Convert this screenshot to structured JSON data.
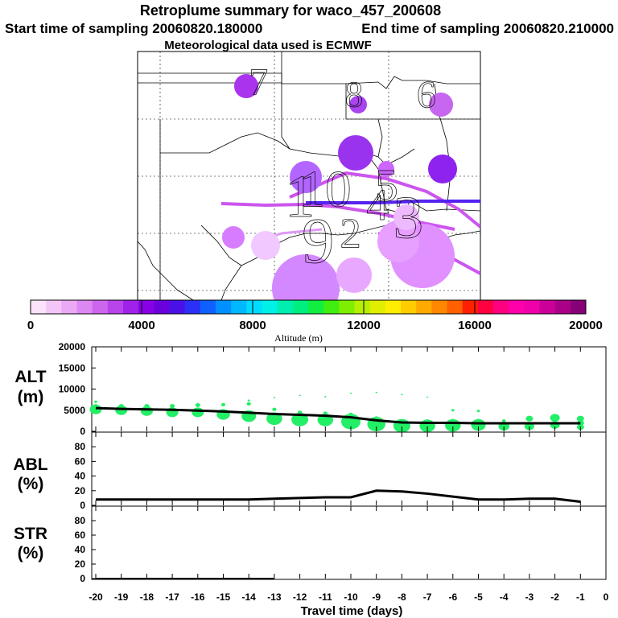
{
  "header": {
    "title": "Retroplume summary for waco_457_200608",
    "start_label": "Start time of sampling 20060820.180000",
    "end_label": "End time of sampling 20060820.210000",
    "met_label": "Meteorological data used is ECMWF"
  },
  "colors": {
    "alt_marker": "#22ee66",
    "line": "#000000",
    "plume_track": "#cc55ee",
    "plume_track_main": "#6622ee"
  },
  "chart_data": [
    {
      "type": "map",
      "name": "retroplume-map",
      "lon_range": [
        -107,
        -88
      ],
      "lat_range": [
        25,
        39
      ],
      "plume_clusters": [
        {
          "label": "1",
          "lon": -98.0,
          "lat": 30.9,
          "size": 0.9,
          "color": "#b366ff"
        },
        {
          "label": "2",
          "lon": -95.2,
          "lat": 28.8,
          "size": 0.45,
          "color": "#e8a8ff"
        },
        {
          "label": "3",
          "lon": -92.0,
          "lat": 29.7,
          "size": 0.9,
          "color": "#e090ff"
        },
        {
          "label": "4",
          "lon": -93.7,
          "lat": 30.4,
          "size": 0.5,
          "color": "#cc66ff"
        },
        {
          "label": "5",
          "lon": -93.2,
          "lat": 31.5,
          "size": 0.55,
          "color": "#d98cff"
        },
        {
          "label": "6",
          "lon": -91.0,
          "lat": 36.6,
          "size": 0.35,
          "color": "#c766ee"
        },
        {
          "label": "7",
          "lon": -100.3,
          "lat": 37.3,
          "size": 0.35,
          "color": "#aa33ee"
        },
        {
          "label": "8",
          "lon": -95.0,
          "lat": 36.6,
          "size": 0.3,
          "color": "#aa44ee"
        },
        {
          "label": "9",
          "lon": -97.0,
          "lat": 28.4,
          "size": 1.0,
          "color": "#d488ff"
        },
        {
          "label": "10",
          "lon": -96.6,
          "lat": 31.3,
          "size": 0.7,
          "color": "#9a33ee"
        }
      ]
    },
    {
      "type": "colorbar",
      "name": "altitude-colorbar",
      "label": "Altitude (m)",
      "range": [
        0,
        20000
      ],
      "tick_labels": [
        "0",
        "4000",
        "8000",
        "12000",
        "16000",
        "20000"
      ],
      "colors": [
        "#fbe3fb",
        "#f4c6f8",
        "#eaa8f5",
        "#dd88f2",
        "#cc66ee",
        "#b844ec",
        "#a022ea",
        "#8800e6",
        "#6a00dd",
        "#4a10e8",
        "#2a30f5",
        "#1060ff",
        "#0090ff",
        "#00b8ff",
        "#00dcff",
        "#00f0e8",
        "#00eeb0",
        "#00ee80",
        "#10ee40",
        "#40ee10",
        "#80ee00",
        "#b8ee00",
        "#e0ee00",
        "#ffee00",
        "#ffcc00",
        "#ffaa00",
        "#ff8800",
        "#ff6000",
        "#ff2000",
        "#ff0040",
        "#ff0080",
        "#ff00aa",
        "#ee00aa",
        "#cc0099",
        "#aa0088",
        "#880077"
      ]
    },
    {
      "type": "scatter+line",
      "name": "alt-panel",
      "panel_label": [
        "ALT",
        "(m)"
      ],
      "ylim": [
        0,
        20000
      ],
      "y_ticks": [
        "20000",
        "15000",
        "10000",
        "5000",
        "0"
      ],
      "mean_line_x": [
        -20,
        -19,
        -18,
        -17,
        -16,
        -15,
        -14,
        -13,
        -12,
        -11,
        -10,
        -9,
        -8,
        -7,
        -6,
        -5,
        -4,
        -3,
        -2,
        -1
      ],
      "mean_line_y": [
        5500,
        5300,
        5200,
        5100,
        4900,
        4700,
        4400,
        4100,
        3900,
        3700,
        3300,
        2600,
        2100,
        2000,
        2000,
        1900,
        1900,
        1900,
        1900,
        1900
      ],
      "clusters": [
        {
          "x": -20,
          "alts": [
            5200,
            6000,
            7000
          ],
          "sizes": [
            1.0,
            0.4,
            0.25
          ]
        },
        {
          "x": -19,
          "alts": [
            5000,
            6000
          ],
          "sizes": [
            1.0,
            0.4
          ]
        },
        {
          "x": -18,
          "alts": [
            4800,
            6000
          ],
          "sizes": [
            1.0,
            0.4
          ]
        },
        {
          "x": -17,
          "alts": [
            4500,
            6000
          ],
          "sizes": [
            1.0,
            0.4
          ]
        },
        {
          "x": -16,
          "alts": [
            4500,
            6200
          ],
          "sizes": [
            1.0,
            0.4
          ]
        },
        {
          "x": -15,
          "alts": [
            4000,
            6300
          ],
          "sizes": [
            1.1,
            0.35
          ]
        },
        {
          "x": -14,
          "alts": [
            3600,
            6500,
            7300
          ],
          "sizes": [
            1.2,
            0.35,
            0.2
          ]
        },
        {
          "x": -13,
          "alts": [
            3000,
            5200,
            8000
          ],
          "sizes": [
            1.3,
            0.35,
            0.15
          ]
        },
        {
          "x": -12,
          "alts": [
            2800,
            4500,
            8500
          ],
          "sizes": [
            1.4,
            0.35,
            0.15
          ]
        },
        {
          "x": -11,
          "alts": [
            2700,
            4300,
            8200
          ],
          "sizes": [
            1.3,
            0.35,
            0.15
          ]
        },
        {
          "x": -10,
          "alts": [
            2300,
            4000,
            9000
          ],
          "sizes": [
            1.6,
            0.35,
            0.15
          ]
        },
        {
          "x": -9,
          "alts": [
            1700,
            3200,
            9200
          ],
          "sizes": [
            1.5,
            0.3,
            0.15
          ]
        },
        {
          "x": -8,
          "alts": [
            1300,
            2500,
            8700
          ],
          "sizes": [
            1.4,
            0.3,
            0.15
          ]
        },
        {
          "x": -7,
          "alts": [
            1300,
            2500,
            8100
          ],
          "sizes": [
            1.3,
            0.3,
            0.15
          ]
        },
        {
          "x": -6,
          "alts": [
            1400,
            2600,
            5000
          ],
          "sizes": [
            1.3,
            0.3,
            0.25
          ]
        },
        {
          "x": -5,
          "alts": [
            1500,
            2600,
            4800
          ],
          "sizes": [
            1.2,
            0.3,
            0.25
          ]
        },
        {
          "x": -4,
          "alts": [
            1200,
            2500
          ],
          "sizes": [
            0.9,
            0.3
          ]
        },
        {
          "x": -3,
          "alts": [
            1200,
            3000
          ],
          "sizes": [
            0.8,
            0.6
          ]
        },
        {
          "x": -2,
          "alts": [
            1500,
            3200
          ],
          "sizes": [
            0.8,
            0.8
          ]
        },
        {
          "x": -1,
          "alts": [
            1000,
            2000,
            3000
          ],
          "sizes": [
            0.6,
            0.6,
            0.6
          ]
        }
      ]
    },
    {
      "type": "line",
      "name": "abl-panel",
      "panel_label": [
        "ABL",
        "(%)"
      ],
      "ylim": [
        0,
        100
      ],
      "y_ticks": [
        "80",
        "60",
        "40",
        "20",
        "0"
      ],
      "x": [
        -20,
        -19,
        -18,
        -17,
        -16,
        -15,
        -14,
        -13,
        -12,
        -11,
        -10,
        -9,
        -8,
        -7,
        -6,
        -5,
        -4,
        -3,
        -2,
        -1
      ],
      "y": [
        8,
        8,
        8,
        8,
        8,
        8,
        8,
        9,
        10,
        11,
        11,
        20,
        19,
        16,
        12,
        8,
        8,
        9,
        9,
        5
      ]
    },
    {
      "type": "line",
      "name": "str-panel",
      "panel_label": [
        "STR",
        "(%)"
      ],
      "ylim": [
        0,
        100
      ],
      "y_ticks": [
        "80",
        "60",
        "40",
        "20",
        "0"
      ],
      "x_ticks": [
        "-20",
        "-19",
        "-18",
        "-17",
        "-16",
        "-15",
        "-14",
        "-13",
        "-12",
        "-11",
        "-10",
        "-9",
        "-8",
        "-7",
        "-6",
        "-5",
        "-4",
        "-3",
        "-2",
        "-1",
        "0"
      ],
      "xlabel": "Travel time (days)",
      "x": [
        -20,
        -19,
        -18,
        -17,
        -16,
        -15,
        -14,
        -13
      ],
      "y": [
        0,
        0,
        0,
        0,
        0,
        0,
        0,
        0
      ]
    }
  ]
}
